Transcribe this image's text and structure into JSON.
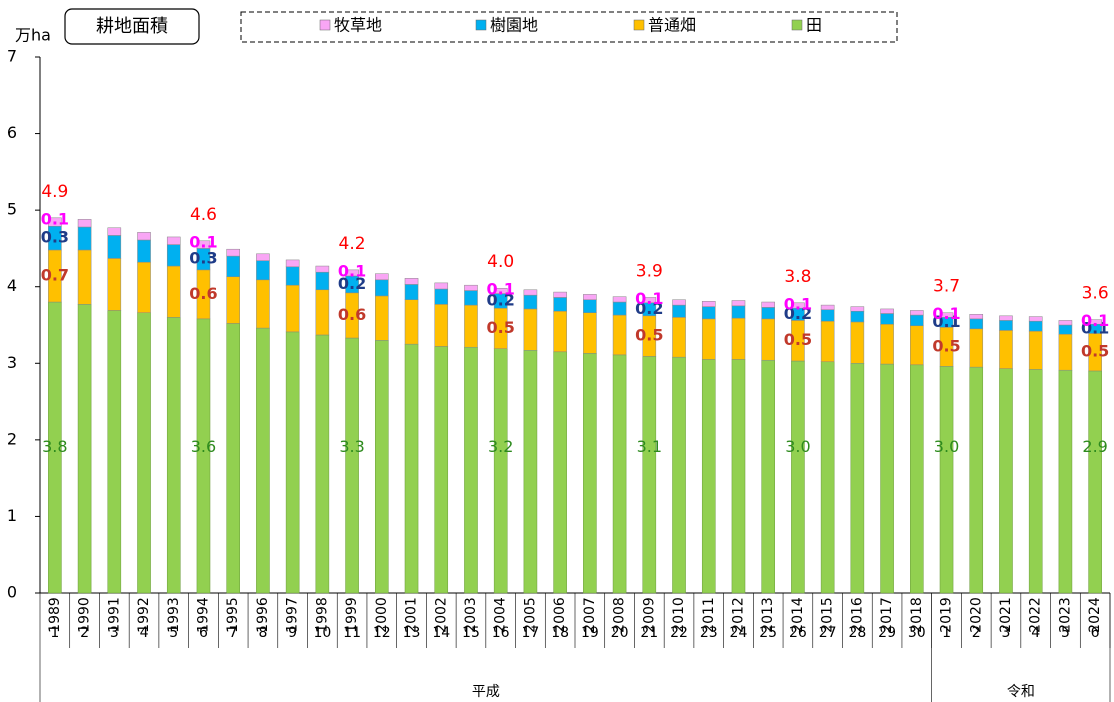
{
  "chart_data": {
    "type": "stacked_bar",
    "title": "耕地面積",
    "y_unit": "万ha",
    "categories": [
      "1989",
      "1990",
      "1991",
      "1992",
      "1993",
      "1994",
      "1995",
      "1996",
      "1997",
      "1998",
      "1999",
      "2000",
      "2001",
      "2002",
      "2003",
      "2004",
      "2005",
      "2006",
      "2007",
      "2008",
      "2009",
      "2010",
      "2011",
      "2012",
      "2013",
      "2014",
      "2015",
      "2016",
      "2017",
      "2018",
      "2019",
      "2020",
      "2021",
      "2022",
      "2023",
      "2024"
    ],
    "era_years": [
      1,
      2,
      3,
      4,
      5,
      6,
      7,
      8,
      9,
      10,
      11,
      12,
      13,
      14,
      15,
      16,
      17,
      18,
      19,
      20,
      21,
      22,
      23,
      24,
      25,
      26,
      27,
      28,
      29,
      30,
      1,
      2,
      3,
      4,
      5,
      6
    ],
    "eras": [
      {
        "name": "平成",
        "span": 30
      },
      {
        "name": "令和",
        "span": 6
      }
    ],
    "ylim": [
      0,
      7
    ],
    "yticks": [
      0,
      1,
      2,
      3,
      4,
      5,
      6,
      7
    ],
    "legend_order": [
      3,
      2,
      1,
      0
    ],
    "series": [
      {
        "name": "田",
        "color": "#92d050",
        "label_color": "#2e8b1e",
        "values": [
          3.8,
          3.77,
          3.69,
          3.66,
          3.6,
          3.58,
          3.52,
          3.46,
          3.41,
          3.37,
          3.33,
          3.3,
          3.25,
          3.22,
          3.21,
          3.19,
          3.17,
          3.15,
          3.13,
          3.11,
          3.09,
          3.08,
          3.05,
          3.05,
          3.04,
          3.03,
          3.02,
          3.0,
          2.99,
          2.98,
          2.96,
          2.95,
          2.93,
          2.92,
          2.91,
          2.9
        ],
        "value_labels": [
          "3.8",
          null,
          null,
          null,
          null,
          "3.6",
          null,
          null,
          null,
          null,
          "3.3",
          null,
          null,
          null,
          null,
          "3.2",
          null,
          null,
          null,
          null,
          "3.1",
          null,
          null,
          null,
          null,
          "3.0",
          null,
          null,
          null,
          null,
          "3.0",
          null,
          null,
          null,
          null,
          "2.9"
        ]
      },
      {
        "name": "普通畑",
        "color": "#ffc000",
        "label_color": "#c0392b",
        "values": [
          0.68,
          0.71,
          0.68,
          0.66,
          0.67,
          0.64,
          0.61,
          0.63,
          0.61,
          0.59,
          0.59,
          0.58,
          0.58,
          0.55,
          0.55,
          0.53,
          0.54,
          0.53,
          0.53,
          0.52,
          0.53,
          0.52,
          0.53,
          0.54,
          0.54,
          0.53,
          0.53,
          0.54,
          0.52,
          0.51,
          0.51,
          0.5,
          0.5,
          0.5,
          0.47,
          0.49
        ],
        "value_labels": [
          "0.7",
          null,
          null,
          null,
          null,
          "0.6",
          null,
          null,
          null,
          null,
          "0.6",
          null,
          null,
          null,
          null,
          "0.5",
          null,
          null,
          null,
          null,
          "0.5",
          null,
          null,
          null,
          null,
          "0.5",
          null,
          null,
          null,
          null,
          "0.5",
          null,
          null,
          null,
          null,
          "0.5"
        ]
      },
      {
        "name": "樹園地",
        "color": "#00b0f0",
        "label_color": "#1f3c88",
        "values": [
          0.31,
          0.3,
          0.3,
          0.29,
          0.28,
          0.28,
          0.27,
          0.25,
          0.24,
          0.23,
          0.22,
          0.21,
          0.2,
          0.2,
          0.19,
          0.19,
          0.18,
          0.18,
          0.17,
          0.17,
          0.17,
          0.16,
          0.16,
          0.16,
          0.15,
          0.16,
          0.15,
          0.14,
          0.14,
          0.14,
          0.13,
          0.13,
          0.13,
          0.13,
          0.12,
          0.12
        ],
        "value_labels": [
          "0.3",
          null,
          null,
          null,
          null,
          "0.3",
          null,
          null,
          null,
          null,
          "0.2",
          null,
          null,
          null,
          null,
          "0.2",
          null,
          null,
          null,
          null,
          "0.2",
          null,
          null,
          null,
          null,
          "0.2",
          null,
          null,
          null,
          null,
          "0.1",
          null,
          null,
          null,
          null,
          "0.1"
        ]
      },
      {
        "name": "牧草地",
        "color": "#f9a6f5",
        "label_color": "#ff00ff",
        "values": [
          0.11,
          0.1,
          0.1,
          0.1,
          0.1,
          0.1,
          0.09,
          0.09,
          0.09,
          0.08,
          0.08,
          0.08,
          0.08,
          0.08,
          0.07,
          0.07,
          0.07,
          0.07,
          0.07,
          0.07,
          0.07,
          0.07,
          0.07,
          0.07,
          0.07,
          0.07,
          0.06,
          0.06,
          0.06,
          0.06,
          0.06,
          0.06,
          0.06,
          0.06,
          0.06,
          0.06
        ],
        "value_labels": [
          "0.1",
          null,
          null,
          null,
          null,
          "0.1",
          null,
          null,
          null,
          null,
          "0.1",
          null,
          null,
          null,
          null,
          "0.1",
          null,
          null,
          null,
          null,
          "0.1",
          null,
          null,
          null,
          null,
          "0.1",
          null,
          null,
          null,
          null,
          "0.1",
          null,
          null,
          null,
          null,
          "0.1"
        ]
      }
    ],
    "total_labels": [
      "4.9",
      null,
      null,
      null,
      null,
      "4.6",
      null,
      null,
      null,
      null,
      "4.2",
      null,
      null,
      null,
      null,
      "4.0",
      null,
      null,
      null,
      null,
      "3.9",
      null,
      null,
      null,
      null,
      "3.8",
      null,
      null,
      null,
      null,
      "3.7",
      null,
      null,
      null,
      null,
      "3.6"
    ],
    "total_label_color": "#ff0000"
  }
}
